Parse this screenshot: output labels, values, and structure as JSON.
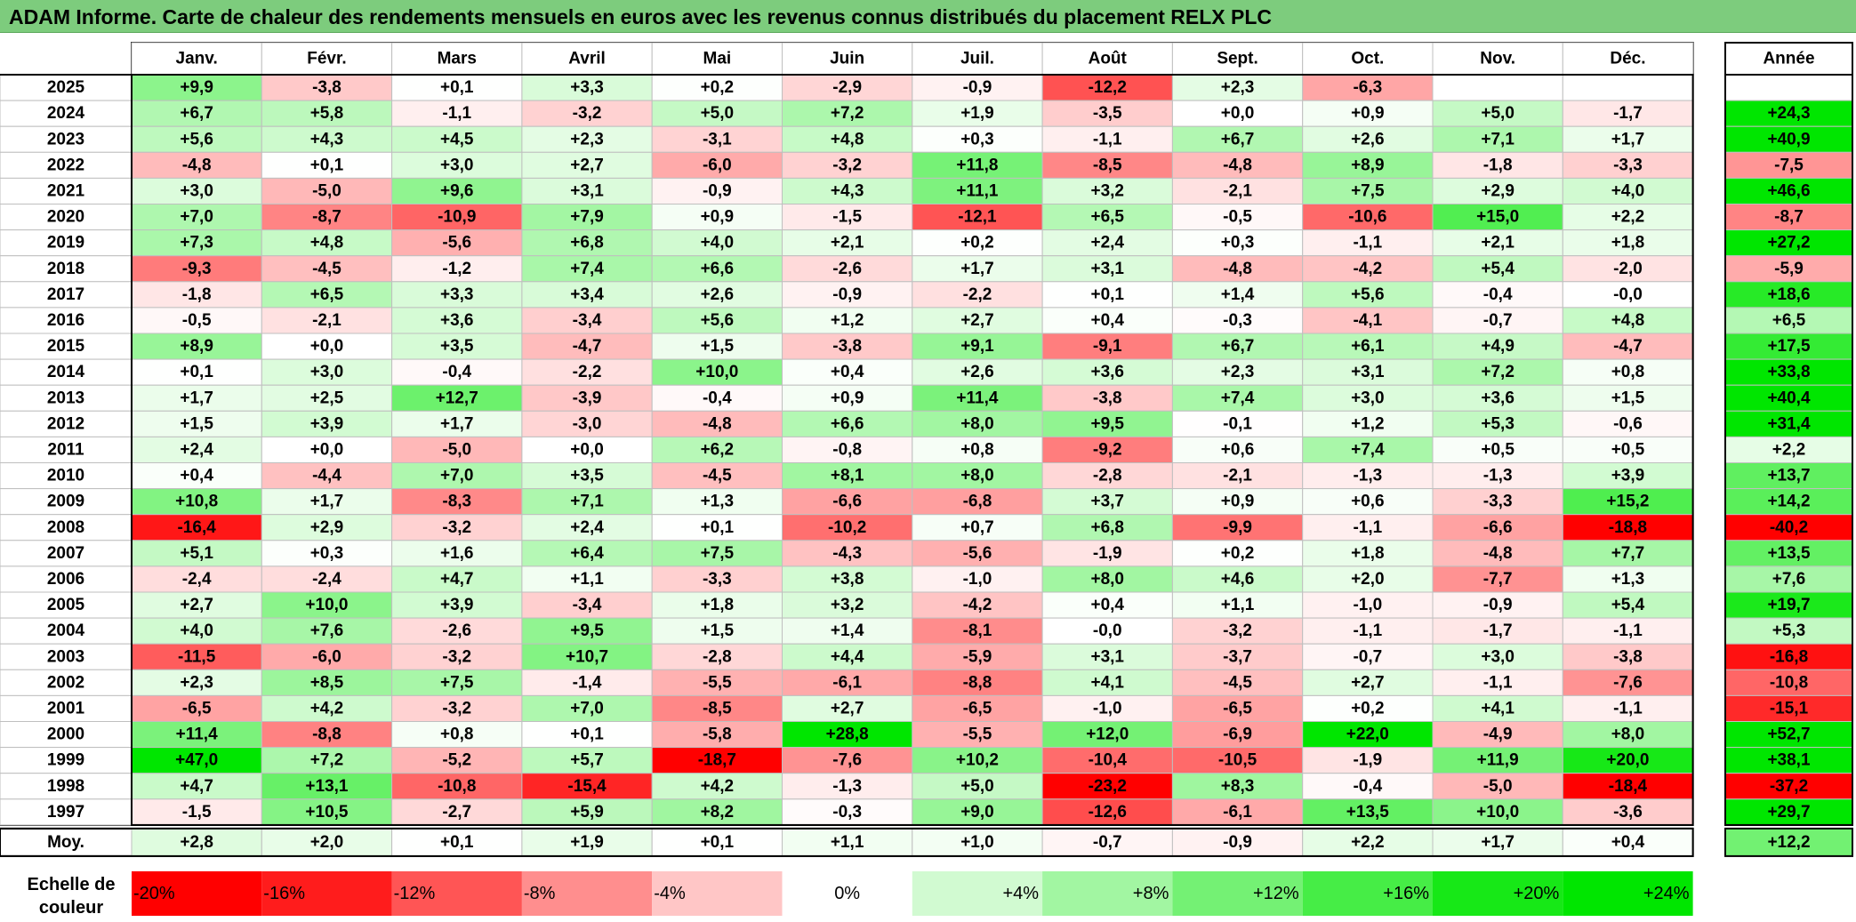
{
  "title": "ADAM Informe. Carte de chaleur des rendements mensuels en euros avec les revenus connus distribués du placement RELX PLC",
  "chart_data": {
    "type": "heatmap",
    "months": [
      "Janv.",
      "Févr.",
      "Mars",
      "Avril",
      "Mai",
      "Juin",
      "Juil.",
      "Août",
      "Sept.",
      "Oct.",
      "Nov.",
      "Déc."
    ],
    "year_header": "Année",
    "avg_label": "Moy.",
    "scale_label": "Echelle de couleur",
    "rows": [
      {
        "year": "2025",
        "values": [
          "+9,9",
          "-3,8",
          "+0,1",
          "+3,3",
          "+0,2",
          "-2,9",
          "-0,9",
          "-12,2",
          "+2,3",
          "-6,3",
          "",
          ""
        ],
        "annual": ""
      },
      {
        "year": "2024",
        "values": [
          "+6,7",
          "+5,8",
          "-1,1",
          "-3,2",
          "+5,0",
          "+7,2",
          "+1,9",
          "-3,5",
          "+0,0",
          "+0,9",
          "+5,0",
          "-1,7"
        ],
        "annual": "+24,3"
      },
      {
        "year": "2023",
        "values": [
          "+5,6",
          "+4,3",
          "+4,5",
          "+2,3",
          "-3,1",
          "+4,8",
          "+0,3",
          "-1,1",
          "+6,7",
          "+2,6",
          "+7,1",
          "+1,7"
        ],
        "annual": "+40,9"
      },
      {
        "year": "2022",
        "values": [
          "-4,8",
          "+0,1",
          "+3,0",
          "+2,7",
          "-6,0",
          "-3,2",
          "+11,8",
          "-8,5",
          "-4,8",
          "+8,9",
          "-1,8",
          "-3,3"
        ],
        "annual": "-7,5"
      },
      {
        "year": "2021",
        "values": [
          "+3,0",
          "-5,0",
          "+9,6",
          "+3,1",
          "-0,9",
          "+4,3",
          "+11,1",
          "+3,2",
          "-2,1",
          "+7,5",
          "+2,9",
          "+4,0"
        ],
        "annual": "+46,6"
      },
      {
        "year": "2020",
        "values": [
          "+7,0",
          "-8,7",
          "-10,9",
          "+7,9",
          "+0,9",
          "-1,5",
          "-12,1",
          "+6,5",
          "-0,5",
          "-10,6",
          "+15,0",
          "+2,2"
        ],
        "annual": "-8,7"
      },
      {
        "year": "2019",
        "values": [
          "+7,3",
          "+4,8",
          "-5,6",
          "+6,8",
          "+4,0",
          "+2,1",
          "+0,2",
          "+2,4",
          "+0,3",
          "-1,1",
          "+2,1",
          "+1,8"
        ],
        "annual": "+27,2"
      },
      {
        "year": "2018",
        "values": [
          "-9,3",
          "-4,5",
          "-1,2",
          "+7,4",
          "+6,6",
          "-2,6",
          "+1,7",
          "+3,1",
          "-4,8",
          "-4,2",
          "+5,4",
          "-2,0"
        ],
        "annual": "-5,9"
      },
      {
        "year": "2017",
        "values": [
          "-1,8",
          "+6,5",
          "+3,3",
          "+3,4",
          "+2,6",
          "-0,9",
          "-2,2",
          "+0,1",
          "+1,4",
          "+5,6",
          "-0,4",
          "-0,0"
        ],
        "annual": "+18,6"
      },
      {
        "year": "2016",
        "values": [
          "-0,5",
          "-2,1",
          "+3,6",
          "-3,4",
          "+5,6",
          "+1,2",
          "+2,7",
          "+0,4",
          "-0,3",
          "-4,1",
          "-0,7",
          "+4,8"
        ],
        "annual": "+6,5"
      },
      {
        "year": "2015",
        "values": [
          "+8,9",
          "+0,0",
          "+3,5",
          "-4,7",
          "+1,5",
          "-3,8",
          "+9,1",
          "-9,1",
          "+6,7",
          "+6,1",
          "+4,9",
          "-4,7"
        ],
        "annual": "+17,5"
      },
      {
        "year": "2014",
        "values": [
          "+0,1",
          "+3,0",
          "-0,4",
          "-2,2",
          "+10,0",
          "+0,4",
          "+2,6",
          "+3,6",
          "+2,3",
          "+3,1",
          "+7,2",
          "+0,8"
        ],
        "annual": "+33,8"
      },
      {
        "year": "2013",
        "values": [
          "+1,7",
          "+2,5",
          "+12,7",
          "-3,9",
          "-0,4",
          "+0,9",
          "+11,4",
          "-3,8",
          "+7,4",
          "+3,0",
          "+3,6",
          "+1,5"
        ],
        "annual": "+40,4"
      },
      {
        "year": "2012",
        "values": [
          "+1,5",
          "+3,9",
          "+1,7",
          "-3,0",
          "-4,8",
          "+6,6",
          "+8,0",
          "+9,5",
          "-0,1",
          "+1,2",
          "+5,3",
          "-0,6"
        ],
        "annual": "+31,4"
      },
      {
        "year": "2011",
        "values": [
          "+2,4",
          "+0,0",
          "-5,0",
          "+0,0",
          "+6,2",
          "-0,8",
          "+0,8",
          "-9,2",
          "+0,6",
          "+7,4",
          "+0,5",
          "+0,5"
        ],
        "annual": "+2,2"
      },
      {
        "year": "2010",
        "values": [
          "+0,4",
          "-4,4",
          "+7,0",
          "+3,5",
          "-4,5",
          "+8,1",
          "+8,0",
          "-2,8",
          "-2,1",
          "-1,3",
          "-1,3",
          "+3,9"
        ],
        "annual": "+13,7"
      },
      {
        "year": "2009",
        "values": [
          "+10,8",
          "+1,7",
          "-8,3",
          "+7,1",
          "+1,3",
          "-6,6",
          "-6,8",
          "+3,7",
          "+0,9",
          "+0,6",
          "-3,3",
          "+15,2"
        ],
        "annual": "+14,2"
      },
      {
        "year": "2008",
        "values": [
          "-16,4",
          "+2,9",
          "-3,2",
          "+2,4",
          "+0,1",
          "-10,2",
          "+0,7",
          "+6,8",
          "-9,9",
          "-1,1",
          "-6,6",
          "-18,8"
        ],
        "annual": "-40,2"
      },
      {
        "year": "2007",
        "values": [
          "+5,1",
          "+0,3",
          "+1,6",
          "+6,4",
          "+7,5",
          "-4,3",
          "-5,6",
          "-1,9",
          "+0,2",
          "+1,8",
          "-4,8",
          "+7,7"
        ],
        "annual": "+13,5"
      },
      {
        "year": "2006",
        "values": [
          "-2,4",
          "-2,4",
          "+4,7",
          "+1,1",
          "-3,3",
          "+3,8",
          "-1,0",
          "+8,0",
          "+4,6",
          "+2,0",
          "-7,7",
          "+1,3"
        ],
        "annual": "+7,6"
      },
      {
        "year": "2005",
        "values": [
          "+2,7",
          "+10,0",
          "+3,9",
          "-3,4",
          "+1,8",
          "+3,2",
          "-4,2",
          "+0,4",
          "+1,1",
          "-1,0",
          "-0,9",
          "+5,4"
        ],
        "annual": "+19,7"
      },
      {
        "year": "2004",
        "values": [
          "+4,0",
          "+7,6",
          "-2,6",
          "+9,5",
          "+1,5",
          "+1,4",
          "-8,1",
          "-0,0",
          "-3,2",
          "-1,1",
          "-1,7",
          "-1,1"
        ],
        "annual": "+5,3"
      },
      {
        "year": "2003",
        "values": [
          "-11,5",
          "-6,0",
          "-3,2",
          "+10,7",
          "-2,8",
          "+4,4",
          "-5,9",
          "+3,1",
          "-3,7",
          "-0,7",
          "+3,0",
          "-3,8"
        ],
        "annual": "-16,8"
      },
      {
        "year": "2002",
        "values": [
          "+2,3",
          "+8,5",
          "+7,5",
          "-1,4",
          "-5,5",
          "-6,1",
          "-8,8",
          "+4,1",
          "-4,5",
          "+2,7",
          "-1,1",
          "-7,6"
        ],
        "annual": "-10,8"
      },
      {
        "year": "2001",
        "values": [
          "-6,5",
          "+4,2",
          "-3,2",
          "+7,0",
          "-8,5",
          "+2,7",
          "-6,5",
          "-1,0",
          "-6,5",
          "+0,2",
          "+4,1",
          "-1,1"
        ],
        "annual": "-15,1"
      },
      {
        "year": "2000",
        "values": [
          "+11,4",
          "-8,8",
          "+0,8",
          "+0,1",
          "-5,8",
          "+28,8",
          "-5,5",
          "+12,0",
          "-6,9",
          "+22,0",
          "-4,9",
          "+8,0"
        ],
        "annual": "+52,7"
      },
      {
        "year": "1999",
        "values": [
          "+47,0",
          "+7,2",
          "-5,2",
          "+5,7",
          "-18,7",
          "-7,6",
          "+10,2",
          "-10,4",
          "-10,5",
          "-1,9",
          "+11,9",
          "+20,0"
        ],
        "annual": "+38,1"
      },
      {
        "year": "1998",
        "values": [
          "+4,7",
          "+13,1",
          "-10,8",
          "-15,4",
          "+4,2",
          "-1,3",
          "+5,0",
          "-23,2",
          "+8,3",
          "-0,4",
          "-5,0",
          "-18,4"
        ],
        "annual": "-37,2"
      },
      {
        "year": "1997",
        "values": [
          "-1,5",
          "+10,5",
          "-2,7",
          "+5,9",
          "+8,2",
          "-0,3",
          "+9,0",
          "-12,6",
          "-6,1",
          "+13,5",
          "+10,0",
          "-3,6"
        ],
        "annual": "+29,7"
      }
    ],
    "average": {
      "values": [
        "+2,8",
        "+2,0",
        "+0,1",
        "+1,9",
        "+0,1",
        "+1,1",
        "+1,0",
        "-0,7",
        "-0,9",
        "+2,2",
        "+1,7",
        "+0,4"
      ],
      "annual": "+12,2"
    },
    "scale": [
      "-20%",
      "-16%",
      "-12%",
      "-8%",
      "-4%",
      "0%",
      "+4%",
      "+8%",
      "+12%",
      "+16%",
      "+20%",
      "+24%"
    ],
    "scale_values": [
      -20,
      -16,
      -12,
      -8,
      -4,
      0,
      4,
      8,
      12,
      16,
      20,
      24
    ],
    "colors": {
      "title_bg": "#7dcc7d",
      "negative_max": "#ff0000",
      "neutral": "#ffffff",
      "positive_max": "#00e600",
      "grid": "#bfbfbf",
      "border": "#000000"
    }
  }
}
